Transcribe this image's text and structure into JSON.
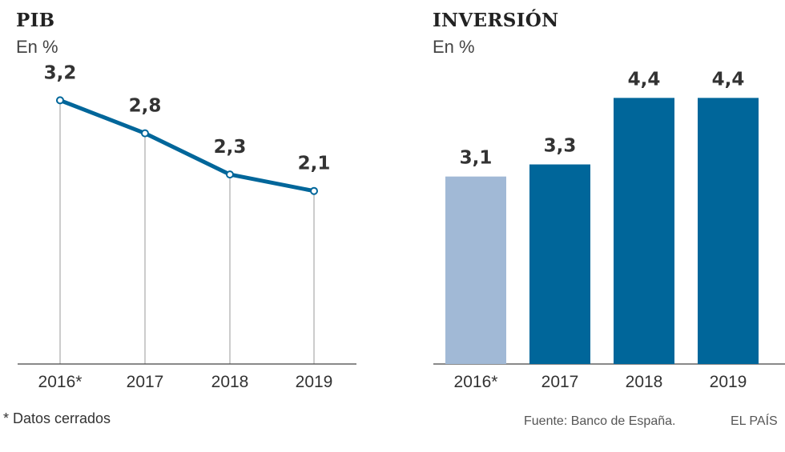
{
  "chart_data": [
    {
      "type": "line",
      "title": "PIB",
      "subtitle": "En %",
      "categories": [
        "2016*",
        "2017",
        "2018",
        "2019"
      ],
      "values": [
        3.2,
        2.8,
        2.3,
        2.1
      ],
      "value_labels": [
        "3,2",
        "2,8",
        "2,3",
        "2,1"
      ],
      "ylim": [
        0,
        4
      ],
      "color": "#00669a"
    },
    {
      "type": "bar",
      "title": "INVERSIÓN",
      "subtitle": "En %",
      "categories": [
        "2016*",
        "2017",
        "2018",
        "2019"
      ],
      "values": [
        3.1,
        3.3,
        4.4,
        4.4
      ],
      "value_labels": [
        "3,1",
        "3,3",
        "4,4",
        "4,4"
      ],
      "ylim": [
        0,
        5.45
      ],
      "colors": [
        "#a1b9d6",
        "#00669a",
        "#00669a",
        "#00669a"
      ]
    }
  ],
  "footnote": "* Datos cerrados",
  "source": "Fuente: Banco de España.",
  "brand": "EL PAÍS"
}
